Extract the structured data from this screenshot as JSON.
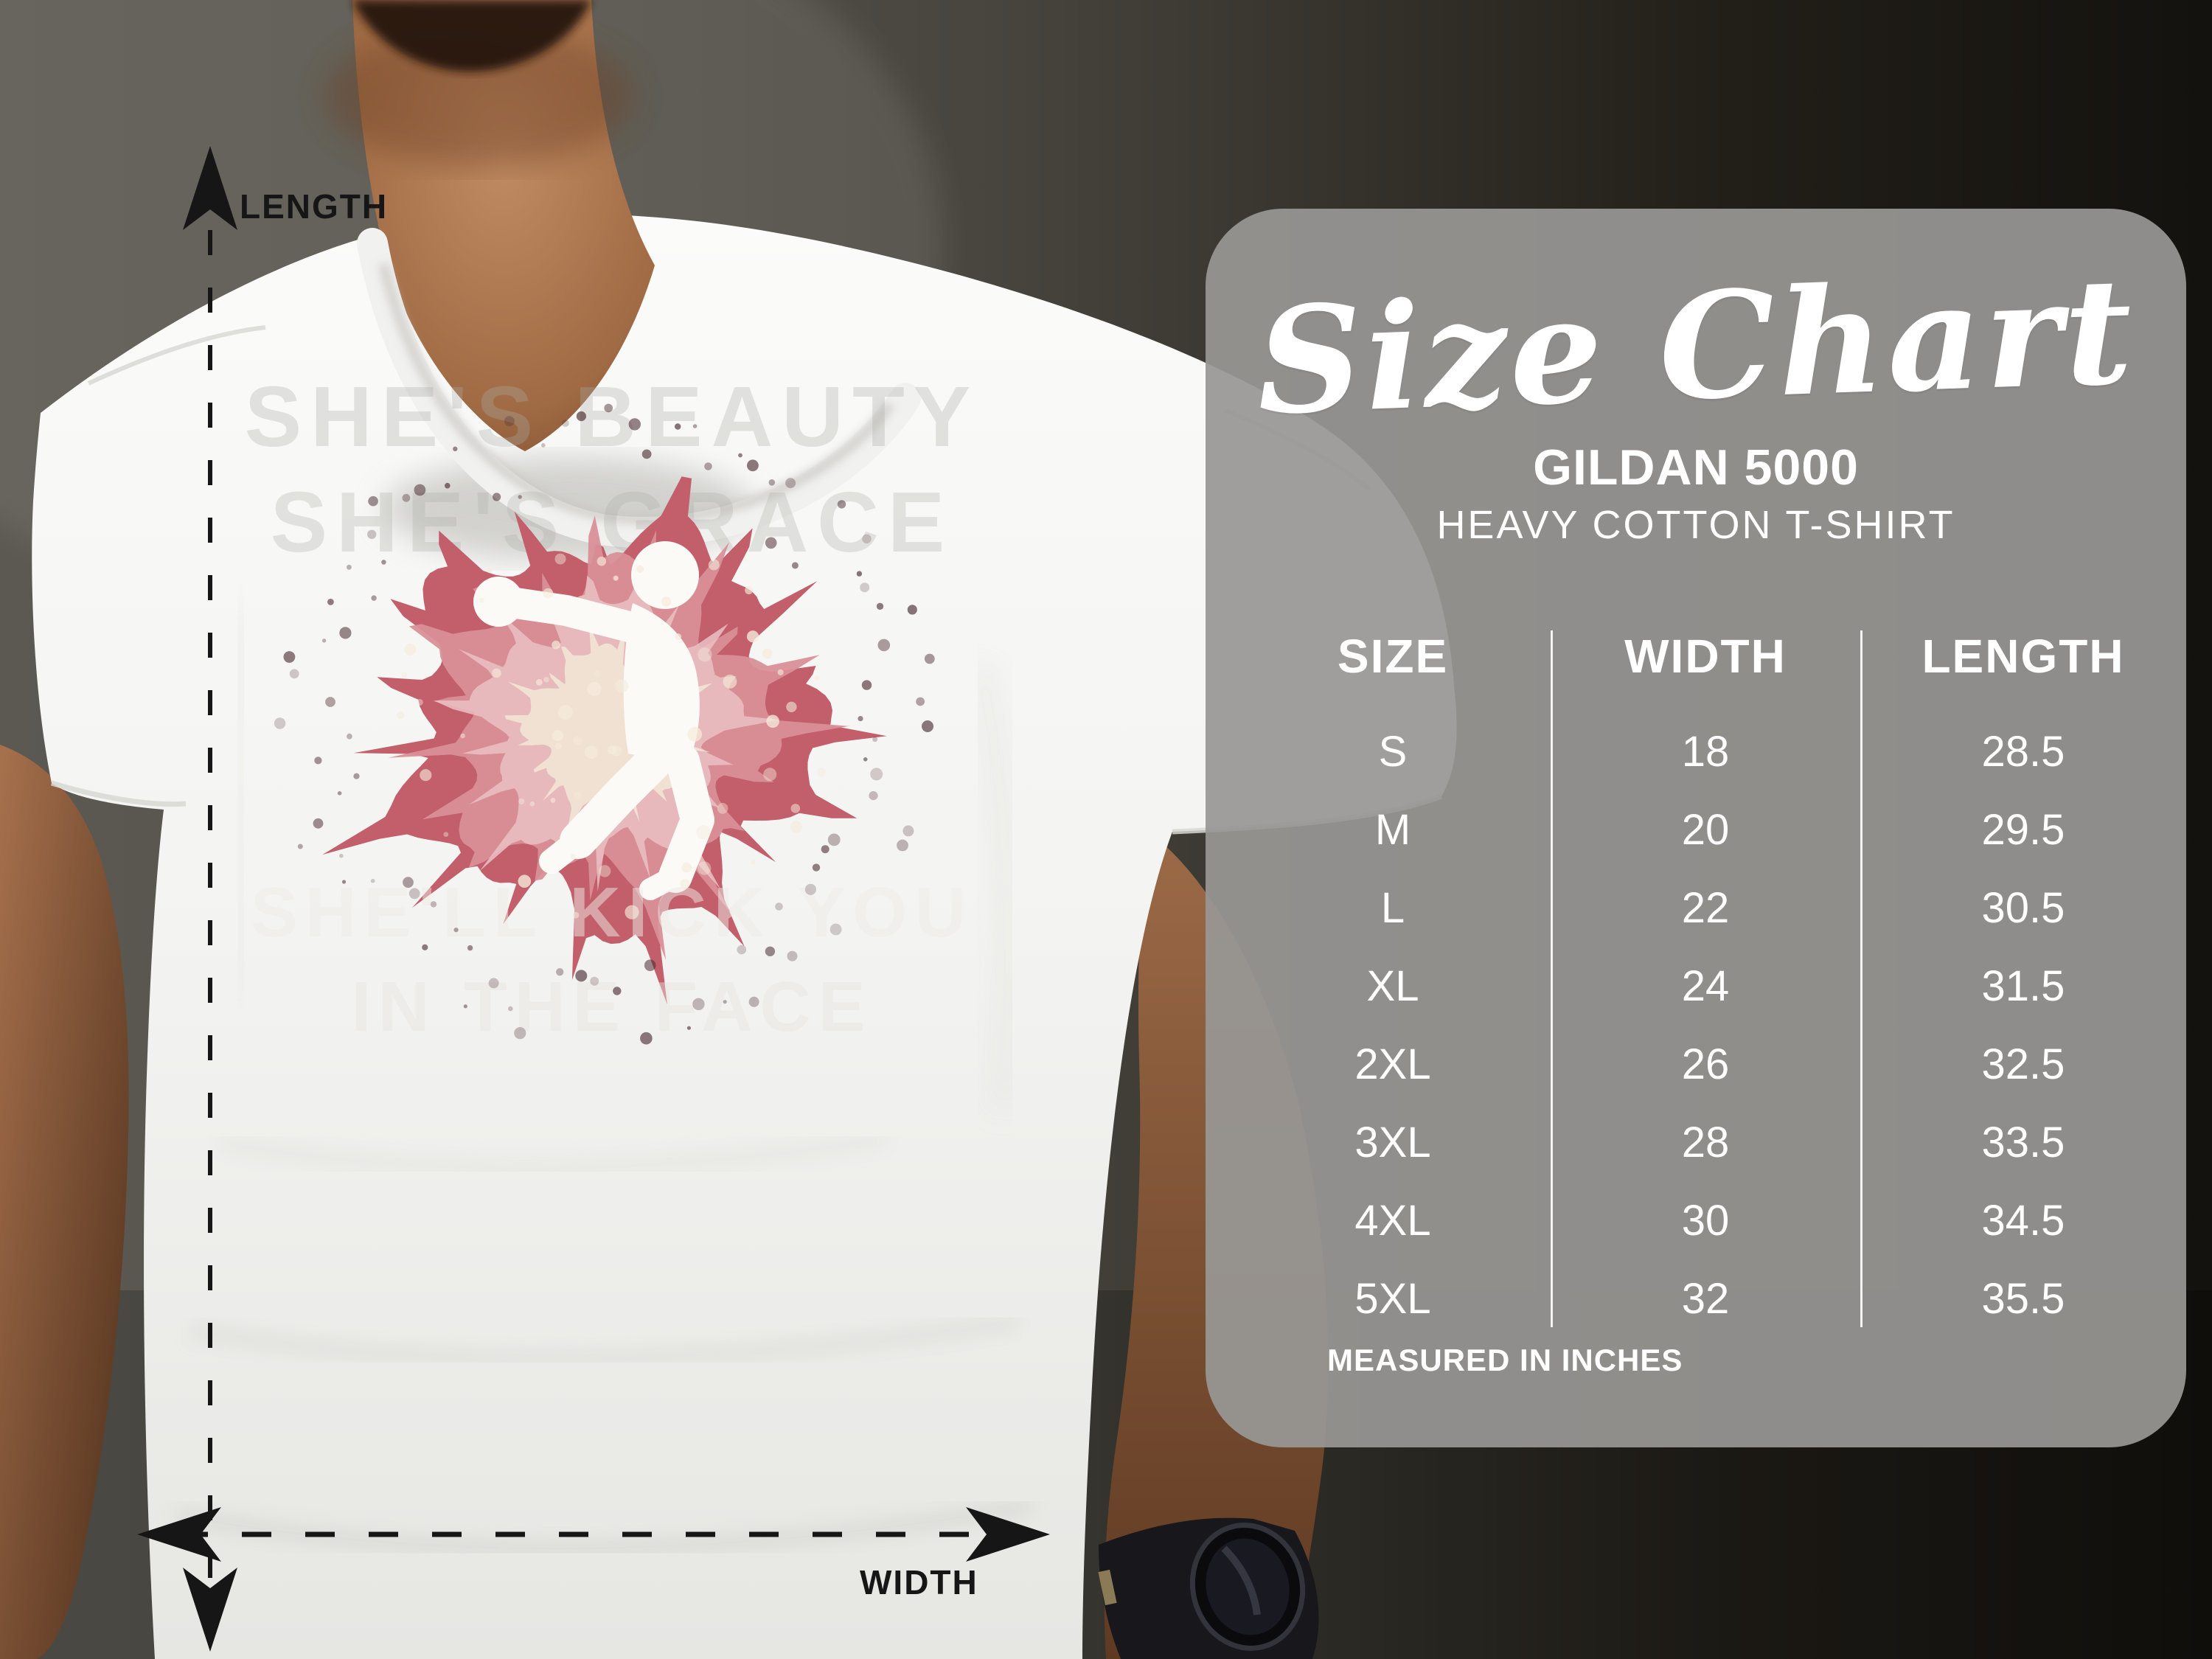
{
  "measurement_overlay": {
    "length_label": "LENGTH",
    "width_label": "WIDTH"
  },
  "panel": {
    "title": "Size Chart",
    "brand_line1": "GILDAN 5000",
    "brand_line2": "HEAVY COTTON T-SHIRT",
    "columns": [
      "SIZE",
      "WIDTH",
      "LENGTH"
    ],
    "footer_note": "MEASURED IN INCHES",
    "bg_color": "#989794",
    "text_color": "#ffffff"
  },
  "chart_data": {
    "type": "table",
    "title": "Size Chart",
    "subtitle": "GILDAN 5000 HEAVY COTTON T-SHIRT",
    "columns": [
      "SIZE",
      "WIDTH",
      "LENGTH"
    ],
    "units": "inches",
    "rows": [
      [
        "S",
        "18",
        "28.5"
      ],
      [
        "M",
        "20",
        "29.5"
      ],
      [
        "L",
        "22",
        "30.5"
      ],
      [
        "XL",
        "24",
        "31.5"
      ],
      [
        "2XL",
        "26",
        "32.5"
      ],
      [
        "3XL",
        "28",
        "33.5"
      ],
      [
        "4XL",
        "30",
        "34.5"
      ],
      [
        "5XL",
        "32",
        "35.5"
      ]
    ],
    "footnote": "MEASURED IN INCHES"
  },
  "tshirt_print": {
    "top_lines": [
      "SHE'S BEAUTY",
      "SHE'S GRACE"
    ],
    "bottom_lines": [
      "SHE'LL KICK YOU",
      "IN THE FACE"
    ],
    "splash_color": "#c25f6b",
    "silhouette": "martial-arts-kick"
  }
}
